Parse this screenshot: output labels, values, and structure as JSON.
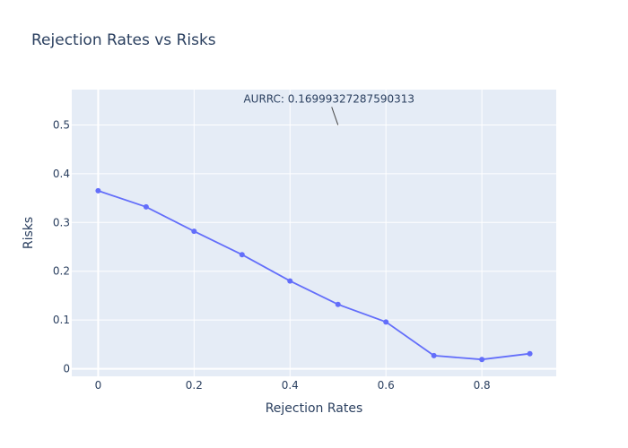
{
  "chart_data": {
    "type": "line",
    "title": "Rejection Rates vs Risks",
    "xlabel": "Rejection Rates",
    "ylabel": "Risks",
    "xlim": [
      -0.055,
      0.955
    ],
    "ylim": [
      -0.0155,
      0.5725
    ],
    "x_ticks": [
      0,
      0.2,
      0.4,
      0.6,
      0.8
    ],
    "x_tick_labels": [
      "0",
      "0.2",
      "0.4",
      "0.6",
      "0.8"
    ],
    "y_ticks": [
      0,
      0.1,
      0.2,
      0.3,
      0.4,
      0.5
    ],
    "y_tick_labels": [
      "0",
      "0.1",
      "0.2",
      "0.3",
      "0.4",
      "0.5"
    ],
    "grid": true,
    "series": [
      {
        "color": "#636efa",
        "x": [
          0,
          0.1,
          0.2,
          0.3,
          0.4,
          0.5,
          0.6,
          0.7,
          0.8,
          0.9
        ],
        "y": [
          0.365,
          0.332,
          0.282,
          0.234,
          0.18,
          0.132,
          0.096,
          0.027,
          0.019,
          0.031
        ]
      }
    ],
    "annotations": [
      {
        "text": "AURRC: 0.16999327287590313",
        "x": 0.5,
        "y": 0.5
      }
    ]
  }
}
